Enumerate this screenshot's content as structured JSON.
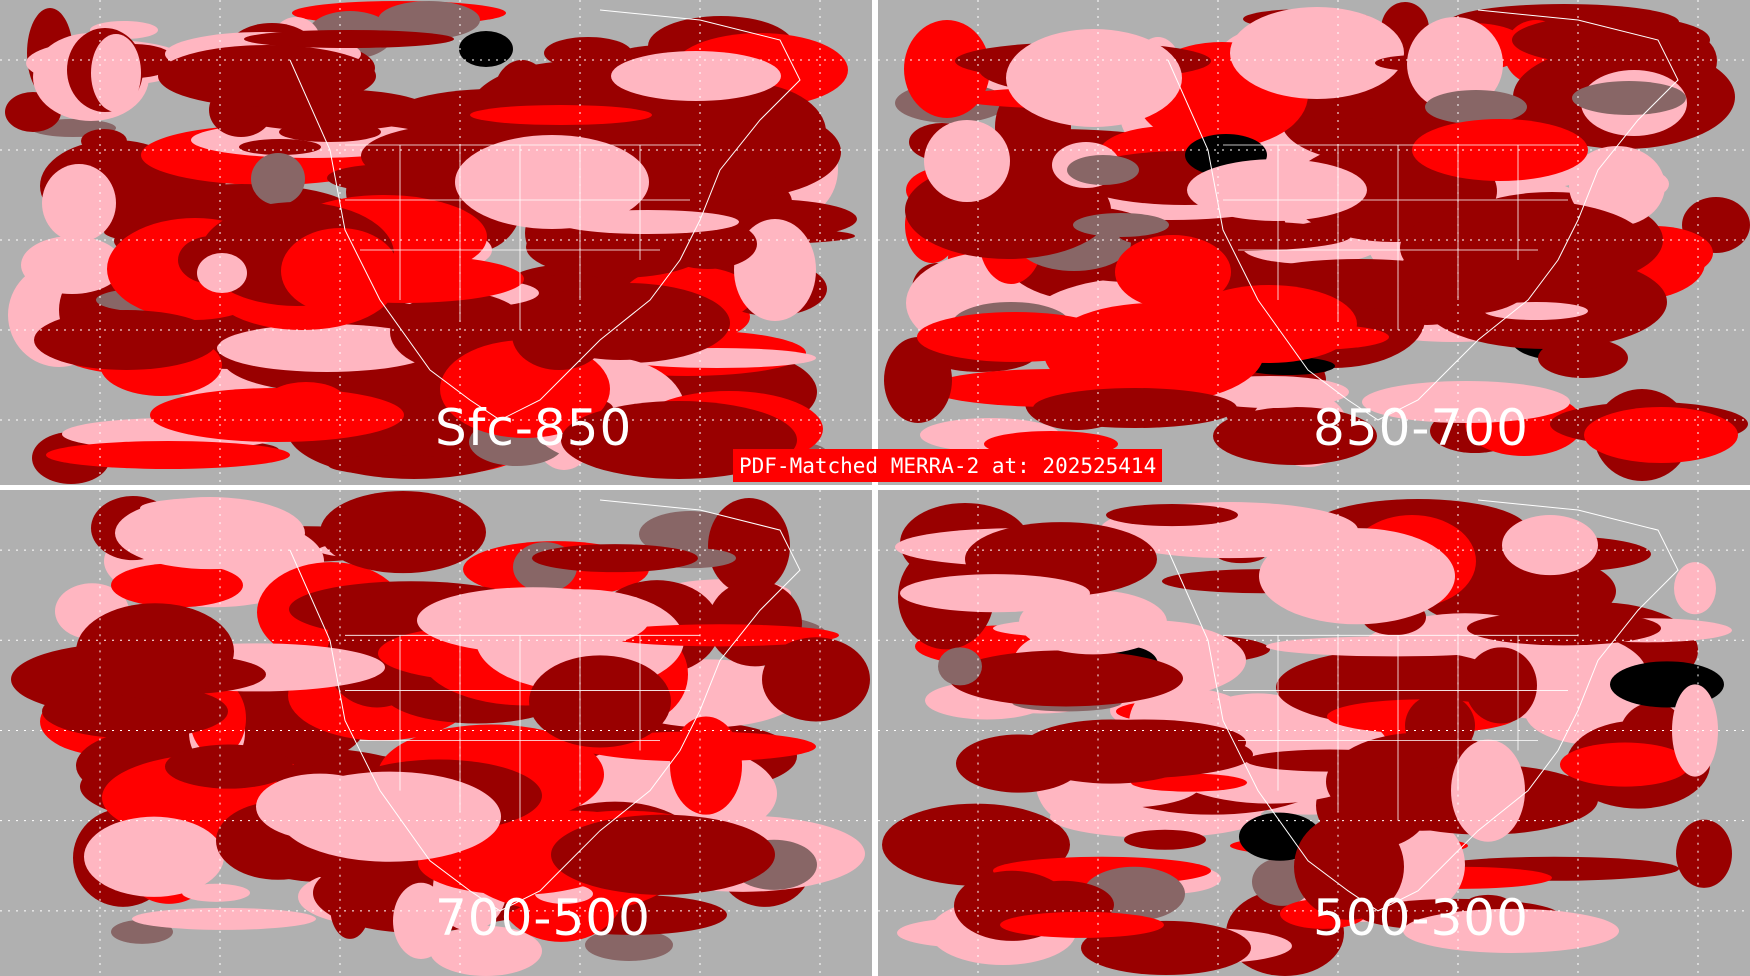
{
  "title": "PDF-Matched MERRA-2 at: 202525414",
  "panels": [
    {
      "label": "Sfc-850"
    },
    {
      "label": "850-700"
    },
    {
      "label": "700-500"
    },
    {
      "label": "500-300"
    }
  ],
  "colors": {
    "category_1": "#000000",
    "category_2": "#ff0000",
    "category_3": "#ffb6c1",
    "category_4": "#990000",
    "category_5": "#886666",
    "background": "#b0b0b0",
    "boundaries": "#ffffff"
  }
}
